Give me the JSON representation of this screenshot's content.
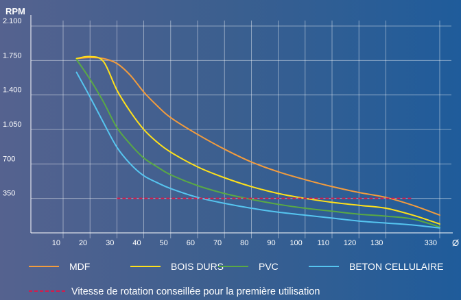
{
  "chart_data": {
    "type": "line",
    "ylabel": "RPM",
    "xlabel": "Ø",
    "y_ticks": [
      "2.100",
      "1.750",
      "1.400",
      "1.050",
      "700",
      "350"
    ],
    "y_tick_values": [
      2100,
      1750,
      1400,
      1050,
      700,
      350
    ],
    "ylim": [
      0,
      2100
    ],
    "x_ticks": [
      "10",
      "20",
      "30",
      "40",
      "50",
      "60",
      "70",
      "80",
      "90",
      "100",
      "110",
      "120",
      "130",
      "330"
    ],
    "grid": true,
    "legend_position": "bottom",
    "series": [
      {
        "name": "MDF",
        "color": "#f39c3d",
        "points": [
          [
            15,
            1770
          ],
          [
            20,
            1780
          ],
          [
            25,
            1770
          ],
          [
            30,
            1720
          ],
          [
            35,
            1600
          ],
          [
            40,
            1430
          ],
          [
            45,
            1290
          ],
          [
            50,
            1170
          ],
          [
            60,
            1000
          ],
          [
            70,
            850
          ],
          [
            80,
            720
          ],
          [
            90,
            620
          ],
          [
            100,
            540
          ],
          [
            110,
            470
          ],
          [
            120,
            410
          ],
          [
            130,
            360
          ],
          [
            140,
            280
          ],
          [
            150,
            180
          ]
        ]
      },
      {
        "name": "BOIS DURS",
        "color": "#ffe11a",
        "points": [
          [
            15,
            1770
          ],
          [
            20,
            1790
          ],
          [
            25,
            1740
          ],
          [
            30,
            1450
          ],
          [
            35,
            1230
          ],
          [
            40,
            1050
          ],
          [
            45,
            920
          ],
          [
            50,
            820
          ],
          [
            60,
            670
          ],
          [
            70,
            560
          ],
          [
            80,
            470
          ],
          [
            90,
            400
          ],
          [
            100,
            350
          ],
          [
            110,
            310
          ],
          [
            120,
            280
          ],
          [
            130,
            250
          ],
          [
            140,
            180
          ],
          [
            150,
            90
          ]
        ]
      },
      {
        "name": "PVC",
        "color": "#5aa944",
        "points": [
          [
            15,
            1760
          ],
          [
            20,
            1560
          ],
          [
            25,
            1330
          ],
          [
            30,
            1070
          ],
          [
            35,
            900
          ],
          [
            40,
            760
          ],
          [
            45,
            670
          ],
          [
            50,
            590
          ],
          [
            60,
            480
          ],
          [
            70,
            400
          ],
          [
            80,
            340
          ],
          [
            90,
            290
          ],
          [
            100,
            250
          ],
          [
            110,
            220
          ],
          [
            120,
            190
          ],
          [
            130,
            170
          ],
          [
            140,
            140
          ],
          [
            150,
            60
          ]
        ]
      },
      {
        "name": "BETON CELLULAIRE",
        "color": "#56c5f0",
        "points": [
          [
            15,
            1630
          ],
          [
            20,
            1380
          ],
          [
            25,
            1120
          ],
          [
            30,
            870
          ],
          [
            35,
            700
          ],
          [
            40,
            580
          ],
          [
            45,
            510
          ],
          [
            50,
            450
          ],
          [
            60,
            360
          ],
          [
            70,
            300
          ],
          [
            80,
            250
          ],
          [
            90,
            210
          ],
          [
            100,
            180
          ],
          [
            110,
            150
          ],
          [
            120,
            120
          ],
          [
            130,
            100
          ],
          [
            140,
            80
          ],
          [
            150,
            50
          ]
        ]
      }
    ],
    "reference_line": {
      "label": "Vitesse de rotation conseillée pour la première utilisation",
      "color": "#d8194a",
      "value": 350,
      "x_range": [
        30,
        140
      ]
    }
  }
}
